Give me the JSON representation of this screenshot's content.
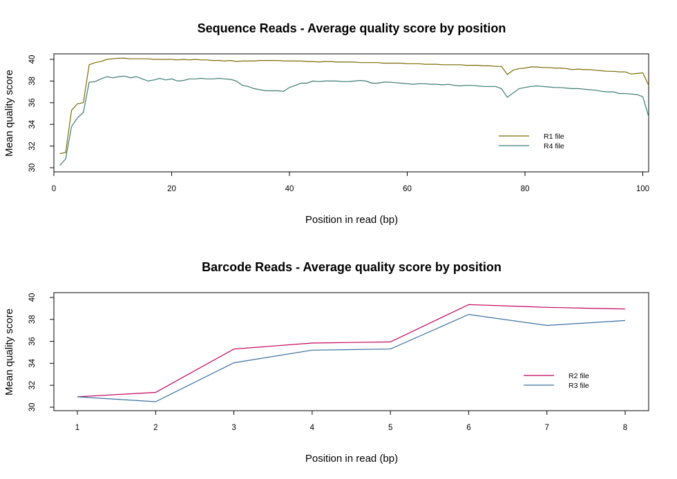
{
  "chart_data": [
    {
      "type": "line",
      "title": "Sequence Reads - Average quality score by position",
      "xlabel": "Position in read (bp)",
      "ylabel": "Mean quality score",
      "xlim": [
        0,
        101
      ],
      "ylim": [
        30,
        40
      ],
      "xticks": [
        0,
        20,
        40,
        60,
        80,
        100
      ],
      "yticks": [
        30,
        32,
        34,
        36,
        38,
        40
      ],
      "legend": "right",
      "grid": false,
      "series": [
        {
          "name": "R1 file",
          "color": "#7a6a00",
          "x": [
            1,
            2,
            3,
            4,
            5,
            6,
            7,
            8,
            9,
            10,
            11,
            12,
            13,
            14,
            15,
            16,
            17,
            18,
            19,
            20,
            21,
            22,
            23,
            24,
            25,
            26,
            27,
            28,
            29,
            30,
            31,
            32,
            33,
            34,
            35,
            36,
            37,
            38,
            39,
            40,
            41,
            42,
            43,
            44,
            45,
            46,
            47,
            48,
            49,
            50,
            51,
            52,
            53,
            54,
            55,
            56,
            57,
            58,
            59,
            60,
            61,
            62,
            63,
            64,
            65,
            66,
            67,
            68,
            69,
            70,
            71,
            72,
            73,
            74,
            75,
            76,
            77,
            78,
            79,
            80,
            81,
            82,
            83,
            84,
            85,
            86,
            87,
            88,
            89,
            90,
            91,
            92,
            93,
            94,
            95,
            96,
            97,
            98,
            99,
            100,
            101
          ],
          "values": [
            31.3,
            31.4,
            35.3,
            35.9,
            36.0,
            39.5,
            39.7,
            39.8,
            40.0,
            40.05,
            40.1,
            40.1,
            40.05,
            40.05,
            40.05,
            40.05,
            40.0,
            40.0,
            40.0,
            40.0,
            39.95,
            40.0,
            39.95,
            40.0,
            39.95,
            39.95,
            39.9,
            39.9,
            39.85,
            39.9,
            39.8,
            39.85,
            39.85,
            39.85,
            39.9,
            39.9,
            39.9,
            39.9,
            39.85,
            39.85,
            39.85,
            39.85,
            39.8,
            39.8,
            39.75,
            39.8,
            39.8,
            39.75,
            39.75,
            39.75,
            39.75,
            39.7,
            39.7,
            39.7,
            39.7,
            39.65,
            39.65,
            39.65,
            39.65,
            39.6,
            39.6,
            39.6,
            39.55,
            39.55,
            39.55,
            39.5,
            39.5,
            39.5,
            39.5,
            39.45,
            39.45,
            39.45,
            39.4,
            39.4,
            39.35,
            39.35,
            38.6,
            39.0,
            39.15,
            39.2,
            39.3,
            39.3,
            39.25,
            39.25,
            39.2,
            39.2,
            39.15,
            39.05,
            39.1,
            39.05,
            39.05,
            39.0,
            38.95,
            38.9,
            38.9,
            38.85,
            38.85,
            38.65,
            38.7,
            38.75,
            37.6
          ]
        },
        {
          "name": "R4 file",
          "color": "#3a7a70",
          "x": [
            1,
            2,
            3,
            4,
            5,
            6,
            7,
            8,
            9,
            10,
            11,
            12,
            13,
            14,
            15,
            16,
            17,
            18,
            19,
            20,
            21,
            22,
            23,
            24,
            25,
            26,
            27,
            28,
            29,
            30,
            31,
            32,
            33,
            34,
            35,
            36,
            37,
            38,
            39,
            40,
            41,
            42,
            43,
            44,
            45,
            46,
            47,
            48,
            49,
            50,
            51,
            52,
            53,
            54,
            55,
            56,
            57,
            58,
            59,
            60,
            61,
            62,
            63,
            64,
            65,
            66,
            67,
            68,
            69,
            70,
            71,
            72,
            73,
            74,
            75,
            76,
            77,
            78,
            79,
            80,
            81,
            82,
            83,
            84,
            85,
            86,
            87,
            88,
            89,
            90,
            91,
            92,
            93,
            94,
            95,
            96,
            97,
            98,
            99,
            100,
            101
          ],
          "values": [
            30.2,
            30.8,
            33.8,
            34.6,
            35.1,
            37.9,
            37.95,
            38.2,
            38.4,
            38.3,
            38.4,
            38.45,
            38.3,
            38.4,
            38.2,
            38.0,
            38.1,
            38.25,
            38.1,
            38.2,
            38.0,
            38.05,
            38.2,
            38.2,
            38.25,
            38.2,
            38.2,
            38.25,
            38.2,
            38.15,
            38.0,
            37.6,
            37.5,
            37.3,
            37.2,
            37.1,
            37.1,
            37.1,
            37.05,
            37.4,
            37.6,
            37.8,
            37.8,
            38.0,
            37.95,
            38.0,
            38.0,
            38.0,
            37.95,
            37.95,
            38.0,
            38.05,
            38.0,
            37.8,
            37.8,
            37.9,
            37.9,
            37.85,
            37.8,
            37.75,
            37.7,
            37.75,
            37.75,
            37.7,
            37.7,
            37.65,
            37.7,
            37.6,
            37.55,
            37.6,
            37.6,
            37.55,
            37.5,
            37.5,
            37.5,
            37.3,
            36.5,
            36.9,
            37.3,
            37.4,
            37.5,
            37.55,
            37.5,
            37.45,
            37.4,
            37.4,
            37.35,
            37.3,
            37.3,
            37.25,
            37.2,
            37.15,
            37.05,
            37.0,
            37.0,
            36.85,
            36.85,
            36.8,
            36.75,
            36.55,
            34.7
          ]
        }
      ]
    },
    {
      "type": "line",
      "title": "Barcode Reads - Average quality score by position",
      "xlabel": "Position in read (bp)",
      "ylabel": "Mean quality score",
      "xlim": [
        0.7,
        8.3
      ],
      "ylim": [
        30,
        40
      ],
      "xticks": [
        1,
        2,
        3,
        4,
        5,
        6,
        7,
        8
      ],
      "yticks": [
        30,
        32,
        34,
        36,
        38,
        40
      ],
      "legend": "right",
      "grid": false,
      "series": [
        {
          "name": "R2 file",
          "color": "#c0005a",
          "x": [
            1,
            2,
            3,
            4,
            5,
            6,
            7,
            8
          ],
          "values": [
            30.95,
            31.35,
            35.3,
            35.85,
            35.95,
            39.35,
            39.1,
            38.95
          ]
        },
        {
          "name": "R3 file",
          "color": "#3a6fa0",
          "x": [
            1,
            2,
            3,
            4,
            5,
            6,
            7,
            8
          ],
          "values": [
            30.95,
            30.5,
            34.05,
            35.2,
            35.3,
            38.45,
            37.45,
            37.9
          ]
        }
      ]
    }
  ]
}
